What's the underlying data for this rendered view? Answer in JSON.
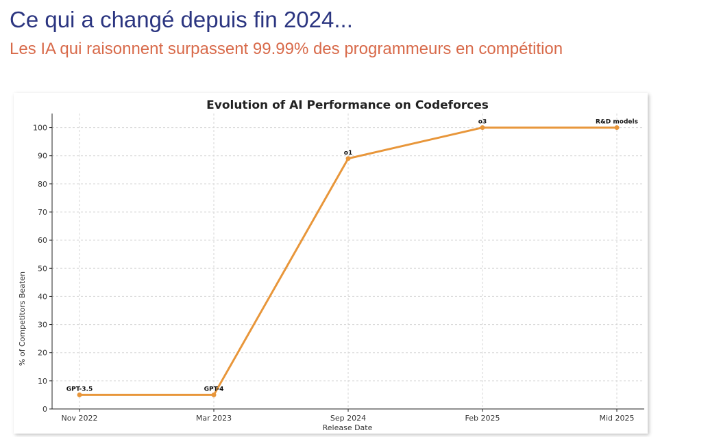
{
  "slide": {
    "title": "Ce qui a changé depuis fin 2024...",
    "subtitle": "Les IA qui raisonnent surpassent 99.99% des programmeurs en compétition"
  },
  "chart_data": {
    "type": "line",
    "title": "Evolution of AI Performance on Codeforces",
    "xlabel": "Release Date",
    "ylabel": "% of Competitors Beaten",
    "categories": [
      "Nov 2022",
      "Mar 2023",
      "Sep 2024",
      "Feb 2025",
      "Mid 2025"
    ],
    "series": [
      {
        "values": [
          5,
          5,
          89,
          100,
          100
        ],
        "point_labels": [
          "GPT-3.5",
          "GPT-4",
          "o1",
          "o3",
          "R&D models"
        ]
      }
    ],
    "ylim": [
      0,
      105
    ],
    "yticks": [
      0,
      10,
      20,
      30,
      40,
      50,
      60,
      70,
      80,
      90,
      100
    ],
    "grid": true,
    "line_color": "#e8963a"
  }
}
